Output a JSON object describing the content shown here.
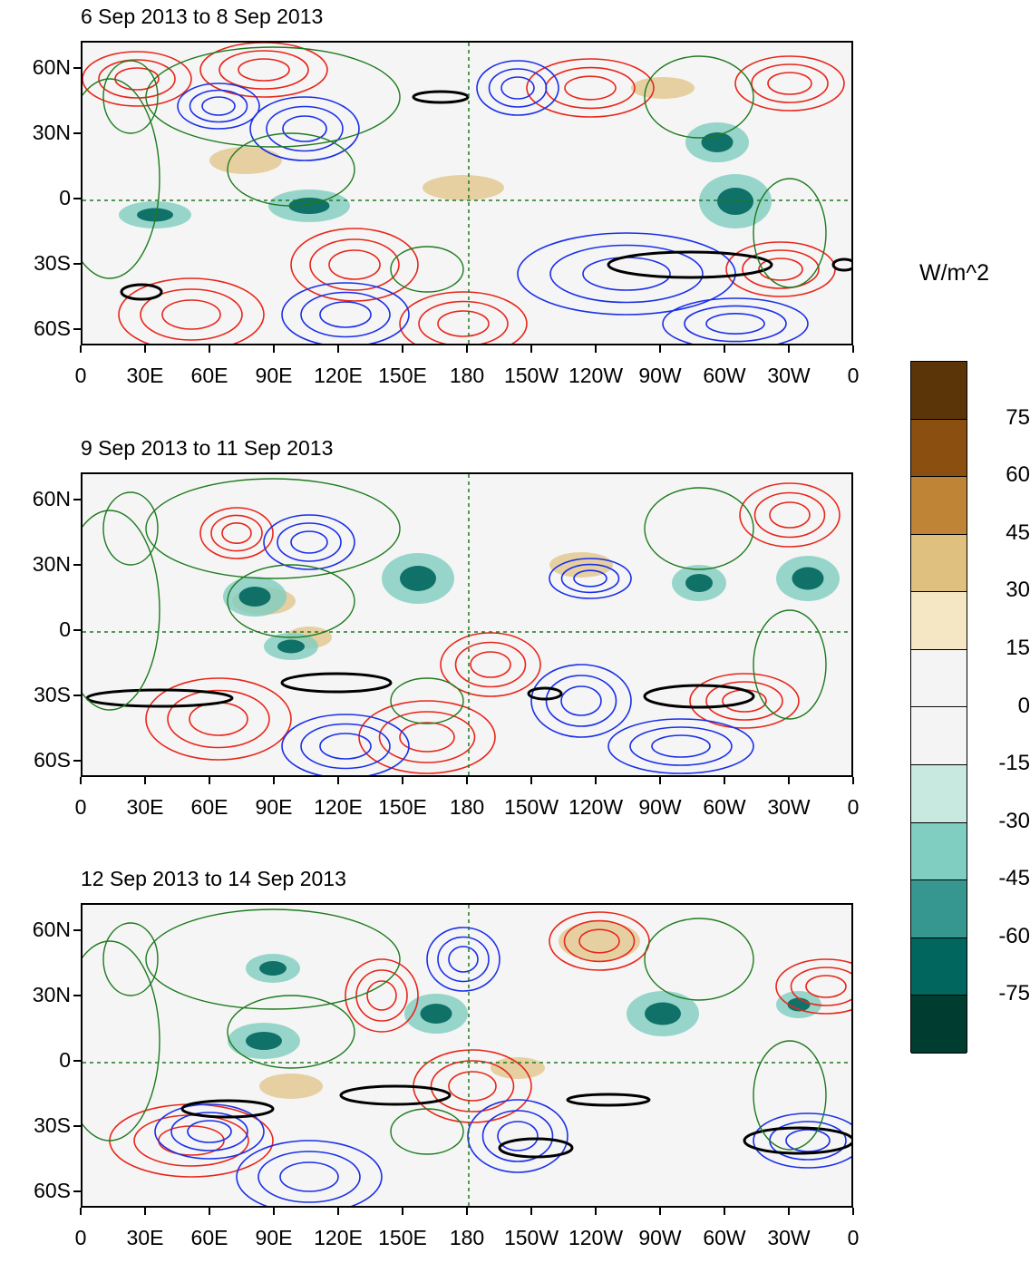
{
  "colorbar": {
    "units": "W/m^2",
    "labels": [
      "75",
      "60",
      "45",
      "30",
      "15",
      "0",
      "-15",
      "-30",
      "-45",
      "-60",
      "-75"
    ],
    "colors": [
      "#5b3508",
      "#8b4f0f",
      "#bf8436",
      "#dfc07f",
      "#f5e6c4",
      "#f4f4f4",
      "#f4f4f4",
      "#c7e9e0",
      "#80cdc1",
      "#35978f",
      "#01665e",
      "#003c30"
    ]
  },
  "lat_labels": [
    "60N",
    "30N",
    "0",
    "30S",
    "60S"
  ],
  "lon_labels": [
    "0",
    "30E",
    "60E",
    "90E",
    "120E",
    "150E",
    "180",
    "150W",
    "120W",
    "90W",
    "60W",
    "30W",
    "0"
  ],
  "panels": [
    {
      "title": "6 Sep 2013 to 8 Sep 2013"
    },
    {
      "title": "9 Sep 2013 to 11 Sep 2013"
    },
    {
      "title": "12 Sep 2013 to 14 Sep 2013"
    }
  ]
}
